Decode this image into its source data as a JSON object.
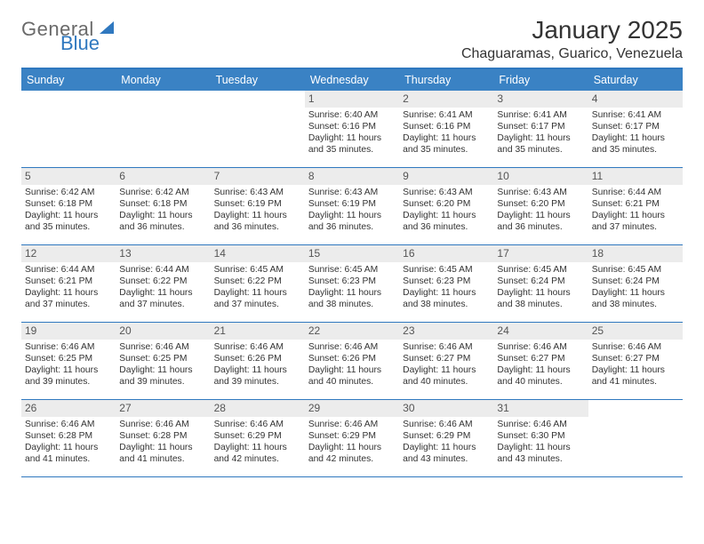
{
  "logo": {
    "word1": "General",
    "word2": "Blue"
  },
  "header": {
    "title": "January 2025",
    "location": "Chaguaramas, Guarico, Venezuela"
  },
  "colors": {
    "header_bg": "#3a82c4",
    "border": "#2f78bf",
    "daynum_bg": "#ececec",
    "text": "#333333",
    "logo_gray": "#6a6a6a",
    "logo_blue": "#2f78bf",
    "page_bg": "#ffffff"
  },
  "typography": {
    "title_fontsize": 28,
    "location_fontsize": 16,
    "dayhead_fontsize": 12.5,
    "cell_fontsize": 10.3,
    "daynum_fontsize": 12
  },
  "days_of_week": [
    "Sunday",
    "Monday",
    "Tuesday",
    "Wednesday",
    "Thursday",
    "Friday",
    "Saturday"
  ],
  "weeks": [
    [
      {
        "empty": true
      },
      {
        "empty": true
      },
      {
        "empty": true
      },
      {
        "day": "1",
        "sunrise": "Sunrise: 6:40 AM",
        "sunset": "Sunset: 6:16 PM",
        "daylight": "Daylight: 11 hours and 35 minutes."
      },
      {
        "day": "2",
        "sunrise": "Sunrise: 6:41 AM",
        "sunset": "Sunset: 6:16 PM",
        "daylight": "Daylight: 11 hours and 35 minutes."
      },
      {
        "day": "3",
        "sunrise": "Sunrise: 6:41 AM",
        "sunset": "Sunset: 6:17 PM",
        "daylight": "Daylight: 11 hours and 35 minutes."
      },
      {
        "day": "4",
        "sunrise": "Sunrise: 6:41 AM",
        "sunset": "Sunset: 6:17 PM",
        "daylight": "Daylight: 11 hours and 35 minutes."
      }
    ],
    [
      {
        "day": "5",
        "sunrise": "Sunrise: 6:42 AM",
        "sunset": "Sunset: 6:18 PM",
        "daylight": "Daylight: 11 hours and 35 minutes."
      },
      {
        "day": "6",
        "sunrise": "Sunrise: 6:42 AM",
        "sunset": "Sunset: 6:18 PM",
        "daylight": "Daylight: 11 hours and 36 minutes."
      },
      {
        "day": "7",
        "sunrise": "Sunrise: 6:43 AM",
        "sunset": "Sunset: 6:19 PM",
        "daylight": "Daylight: 11 hours and 36 minutes."
      },
      {
        "day": "8",
        "sunrise": "Sunrise: 6:43 AM",
        "sunset": "Sunset: 6:19 PM",
        "daylight": "Daylight: 11 hours and 36 minutes."
      },
      {
        "day": "9",
        "sunrise": "Sunrise: 6:43 AM",
        "sunset": "Sunset: 6:20 PM",
        "daylight": "Daylight: 11 hours and 36 minutes."
      },
      {
        "day": "10",
        "sunrise": "Sunrise: 6:43 AM",
        "sunset": "Sunset: 6:20 PM",
        "daylight": "Daylight: 11 hours and 36 minutes."
      },
      {
        "day": "11",
        "sunrise": "Sunrise: 6:44 AM",
        "sunset": "Sunset: 6:21 PM",
        "daylight": "Daylight: 11 hours and 37 minutes."
      }
    ],
    [
      {
        "day": "12",
        "sunrise": "Sunrise: 6:44 AM",
        "sunset": "Sunset: 6:21 PM",
        "daylight": "Daylight: 11 hours and 37 minutes."
      },
      {
        "day": "13",
        "sunrise": "Sunrise: 6:44 AM",
        "sunset": "Sunset: 6:22 PM",
        "daylight": "Daylight: 11 hours and 37 minutes."
      },
      {
        "day": "14",
        "sunrise": "Sunrise: 6:45 AM",
        "sunset": "Sunset: 6:22 PM",
        "daylight": "Daylight: 11 hours and 37 minutes."
      },
      {
        "day": "15",
        "sunrise": "Sunrise: 6:45 AM",
        "sunset": "Sunset: 6:23 PM",
        "daylight": "Daylight: 11 hours and 38 minutes."
      },
      {
        "day": "16",
        "sunrise": "Sunrise: 6:45 AM",
        "sunset": "Sunset: 6:23 PM",
        "daylight": "Daylight: 11 hours and 38 minutes."
      },
      {
        "day": "17",
        "sunrise": "Sunrise: 6:45 AM",
        "sunset": "Sunset: 6:24 PM",
        "daylight": "Daylight: 11 hours and 38 minutes."
      },
      {
        "day": "18",
        "sunrise": "Sunrise: 6:45 AM",
        "sunset": "Sunset: 6:24 PM",
        "daylight": "Daylight: 11 hours and 38 minutes."
      }
    ],
    [
      {
        "day": "19",
        "sunrise": "Sunrise: 6:46 AM",
        "sunset": "Sunset: 6:25 PM",
        "daylight": "Daylight: 11 hours and 39 minutes."
      },
      {
        "day": "20",
        "sunrise": "Sunrise: 6:46 AM",
        "sunset": "Sunset: 6:25 PM",
        "daylight": "Daylight: 11 hours and 39 minutes."
      },
      {
        "day": "21",
        "sunrise": "Sunrise: 6:46 AM",
        "sunset": "Sunset: 6:26 PM",
        "daylight": "Daylight: 11 hours and 39 minutes."
      },
      {
        "day": "22",
        "sunrise": "Sunrise: 6:46 AM",
        "sunset": "Sunset: 6:26 PM",
        "daylight": "Daylight: 11 hours and 40 minutes."
      },
      {
        "day": "23",
        "sunrise": "Sunrise: 6:46 AM",
        "sunset": "Sunset: 6:27 PM",
        "daylight": "Daylight: 11 hours and 40 minutes."
      },
      {
        "day": "24",
        "sunrise": "Sunrise: 6:46 AM",
        "sunset": "Sunset: 6:27 PM",
        "daylight": "Daylight: 11 hours and 40 minutes."
      },
      {
        "day": "25",
        "sunrise": "Sunrise: 6:46 AM",
        "sunset": "Sunset: 6:27 PM",
        "daylight": "Daylight: 11 hours and 41 minutes."
      }
    ],
    [
      {
        "day": "26",
        "sunrise": "Sunrise: 6:46 AM",
        "sunset": "Sunset: 6:28 PM",
        "daylight": "Daylight: 11 hours and 41 minutes."
      },
      {
        "day": "27",
        "sunrise": "Sunrise: 6:46 AM",
        "sunset": "Sunset: 6:28 PM",
        "daylight": "Daylight: 11 hours and 41 minutes."
      },
      {
        "day": "28",
        "sunrise": "Sunrise: 6:46 AM",
        "sunset": "Sunset: 6:29 PM",
        "daylight": "Daylight: 11 hours and 42 minutes."
      },
      {
        "day": "29",
        "sunrise": "Sunrise: 6:46 AM",
        "sunset": "Sunset: 6:29 PM",
        "daylight": "Daylight: 11 hours and 42 minutes."
      },
      {
        "day": "30",
        "sunrise": "Sunrise: 6:46 AM",
        "sunset": "Sunset: 6:29 PM",
        "daylight": "Daylight: 11 hours and 43 minutes."
      },
      {
        "day": "31",
        "sunrise": "Sunrise: 6:46 AM",
        "sunset": "Sunset: 6:30 PM",
        "daylight": "Daylight: 11 hours and 43 minutes."
      },
      {
        "empty": true
      }
    ]
  ]
}
